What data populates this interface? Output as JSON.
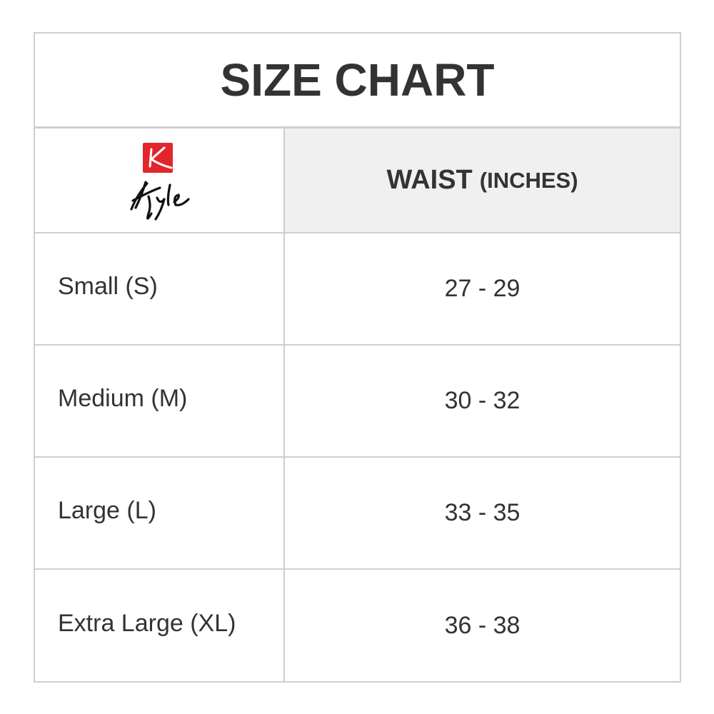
{
  "title": "SIZE CHART",
  "logo": {
    "text": "Kyle",
    "accent": "#e3262b"
  },
  "header": {
    "column_label": "WAIST",
    "unit": "(INCHES)"
  },
  "rows": [
    {
      "size": "Small (S)",
      "waist": "27 - 29"
    },
    {
      "size": "Medium (M)",
      "waist": "30 - 32"
    },
    {
      "size": "Large (L)",
      "waist": "33 - 35"
    },
    {
      "size": "Extra Large (XL)",
      "waist": "36 - 38"
    }
  ]
}
